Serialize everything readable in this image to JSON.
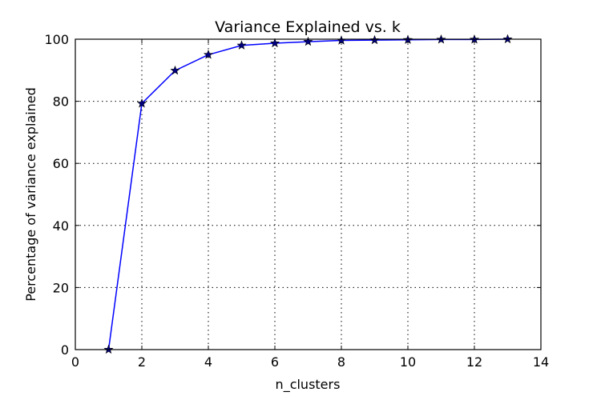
{
  "chart_data": {
    "type": "line",
    "title": "Variance Explained vs. k",
    "xlabel": "n_clusters",
    "ylabel": "Percentage of variance explained",
    "xlim": [
      0,
      14
    ],
    "ylim": [
      0,
      100
    ],
    "xticks": [
      0,
      2,
      4,
      6,
      8,
      10,
      12,
      14
    ],
    "yticks": [
      0,
      20,
      40,
      60,
      80,
      100
    ],
    "grid": true,
    "series": [
      {
        "color": "#0000ff",
        "marker": "star",
        "x": [
          1,
          2,
          3,
          4,
          5,
          6,
          7,
          8,
          9,
          10,
          11,
          12,
          13
        ],
        "y": [
          0,
          79.3,
          89.9,
          95.0,
          98.0,
          98.7,
          99.2,
          99.6,
          99.7,
          99.8,
          99.9,
          99.9,
          100
        ]
      }
    ]
  }
}
